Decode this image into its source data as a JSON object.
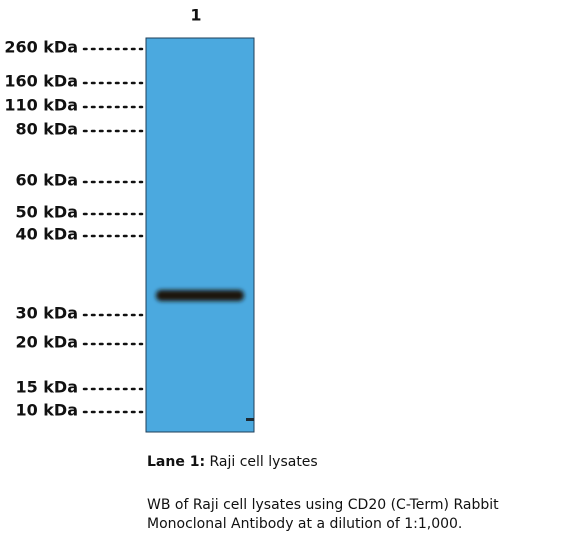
{
  "lane_label": "1",
  "markers": [
    "260 kDa",
    "160 kDa",
    "110 kDa",
    "80 kDa",
    "60 kDa",
    "50 kDa",
    "40 kDa",
    "30 kDa",
    "20 kDa",
    "15 kDa",
    "10 kDa"
  ],
  "caption": {
    "lane_title": "Lane 1:",
    "lane_text": "Raji cell lysates",
    "description": [
      "WB of Raji cell lysates using CD20 (C-Term) Rabbit",
      "Monoclonal Antibody at a dilution of 1:1,000."
    ]
  }
}
